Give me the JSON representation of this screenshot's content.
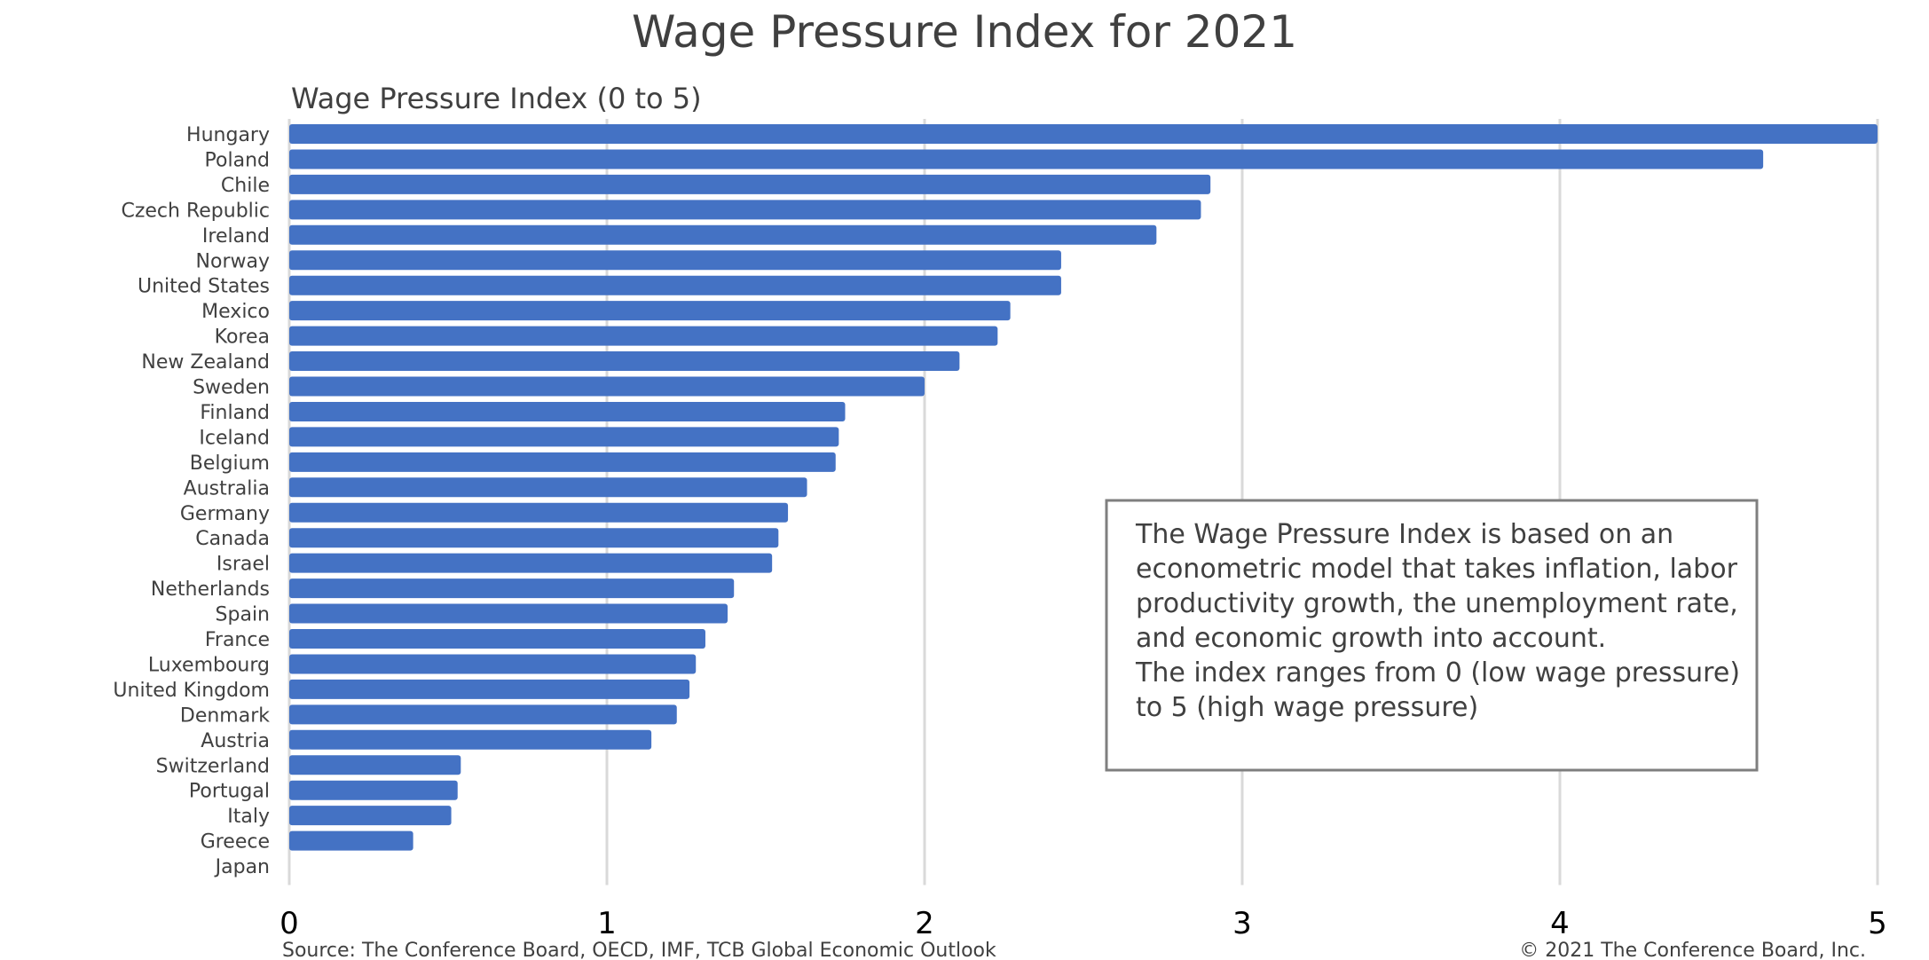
{
  "colors": {
    "bar": "#4472C4",
    "grid": "#D9D9D9",
    "note_border": "#7F7F7F"
  },
  "chart_data": {
    "type": "bar",
    "orientation": "horizontal",
    "title": "Wage Pressure Index for 2021",
    "subtitle": "Wage Pressure Index (0 to 5)",
    "xlabel": "",
    "ylabel": "",
    "xlim": [
      0,
      5
    ],
    "xticks": [
      "0",
      "1",
      "2",
      "3",
      "4",
      "5"
    ],
    "grid": true,
    "legend": "none",
    "categories": [
      "Hungary",
      "Poland",
      "Chile",
      "Czech Republic",
      "Ireland",
      "Norway",
      "United States",
      "Mexico",
      "Korea",
      "New Zealand",
      "Sweden",
      "Finland",
      "Iceland",
      "Belgium",
      "Australia",
      "Germany",
      "Canada",
      "Israel",
      "Netherlands",
      "Spain",
      "France",
      "Luxembourg",
      "United Kingdom",
      "Denmark",
      "Austria",
      "Switzerland",
      "Portugal",
      "Italy",
      "Greece",
      "Japan"
    ],
    "values": [
      5.0,
      4.64,
      2.9,
      2.87,
      2.73,
      2.43,
      2.43,
      2.27,
      2.23,
      2.11,
      2.0,
      1.75,
      1.73,
      1.72,
      1.63,
      1.57,
      1.54,
      1.52,
      1.4,
      1.38,
      1.31,
      1.28,
      1.26,
      1.22,
      1.14,
      0.54,
      0.53,
      0.51,
      0.39,
      0.0
    ],
    "annotation": [
      "The Wage Pressure Index is based on an",
      "econometric model that takes inflation, labor",
      "productivity growth, the unemployment rate,",
      "and economic growth into account.",
      "",
      "The index ranges from 0 (low wage pressure)",
      "to 5 (high wage pressure)"
    ],
    "source": "Source: The Conference Board, OECD, IMF, TCB Global Economic Outlook",
    "copyright": "© 2021 The Conference Board, Inc."
  }
}
